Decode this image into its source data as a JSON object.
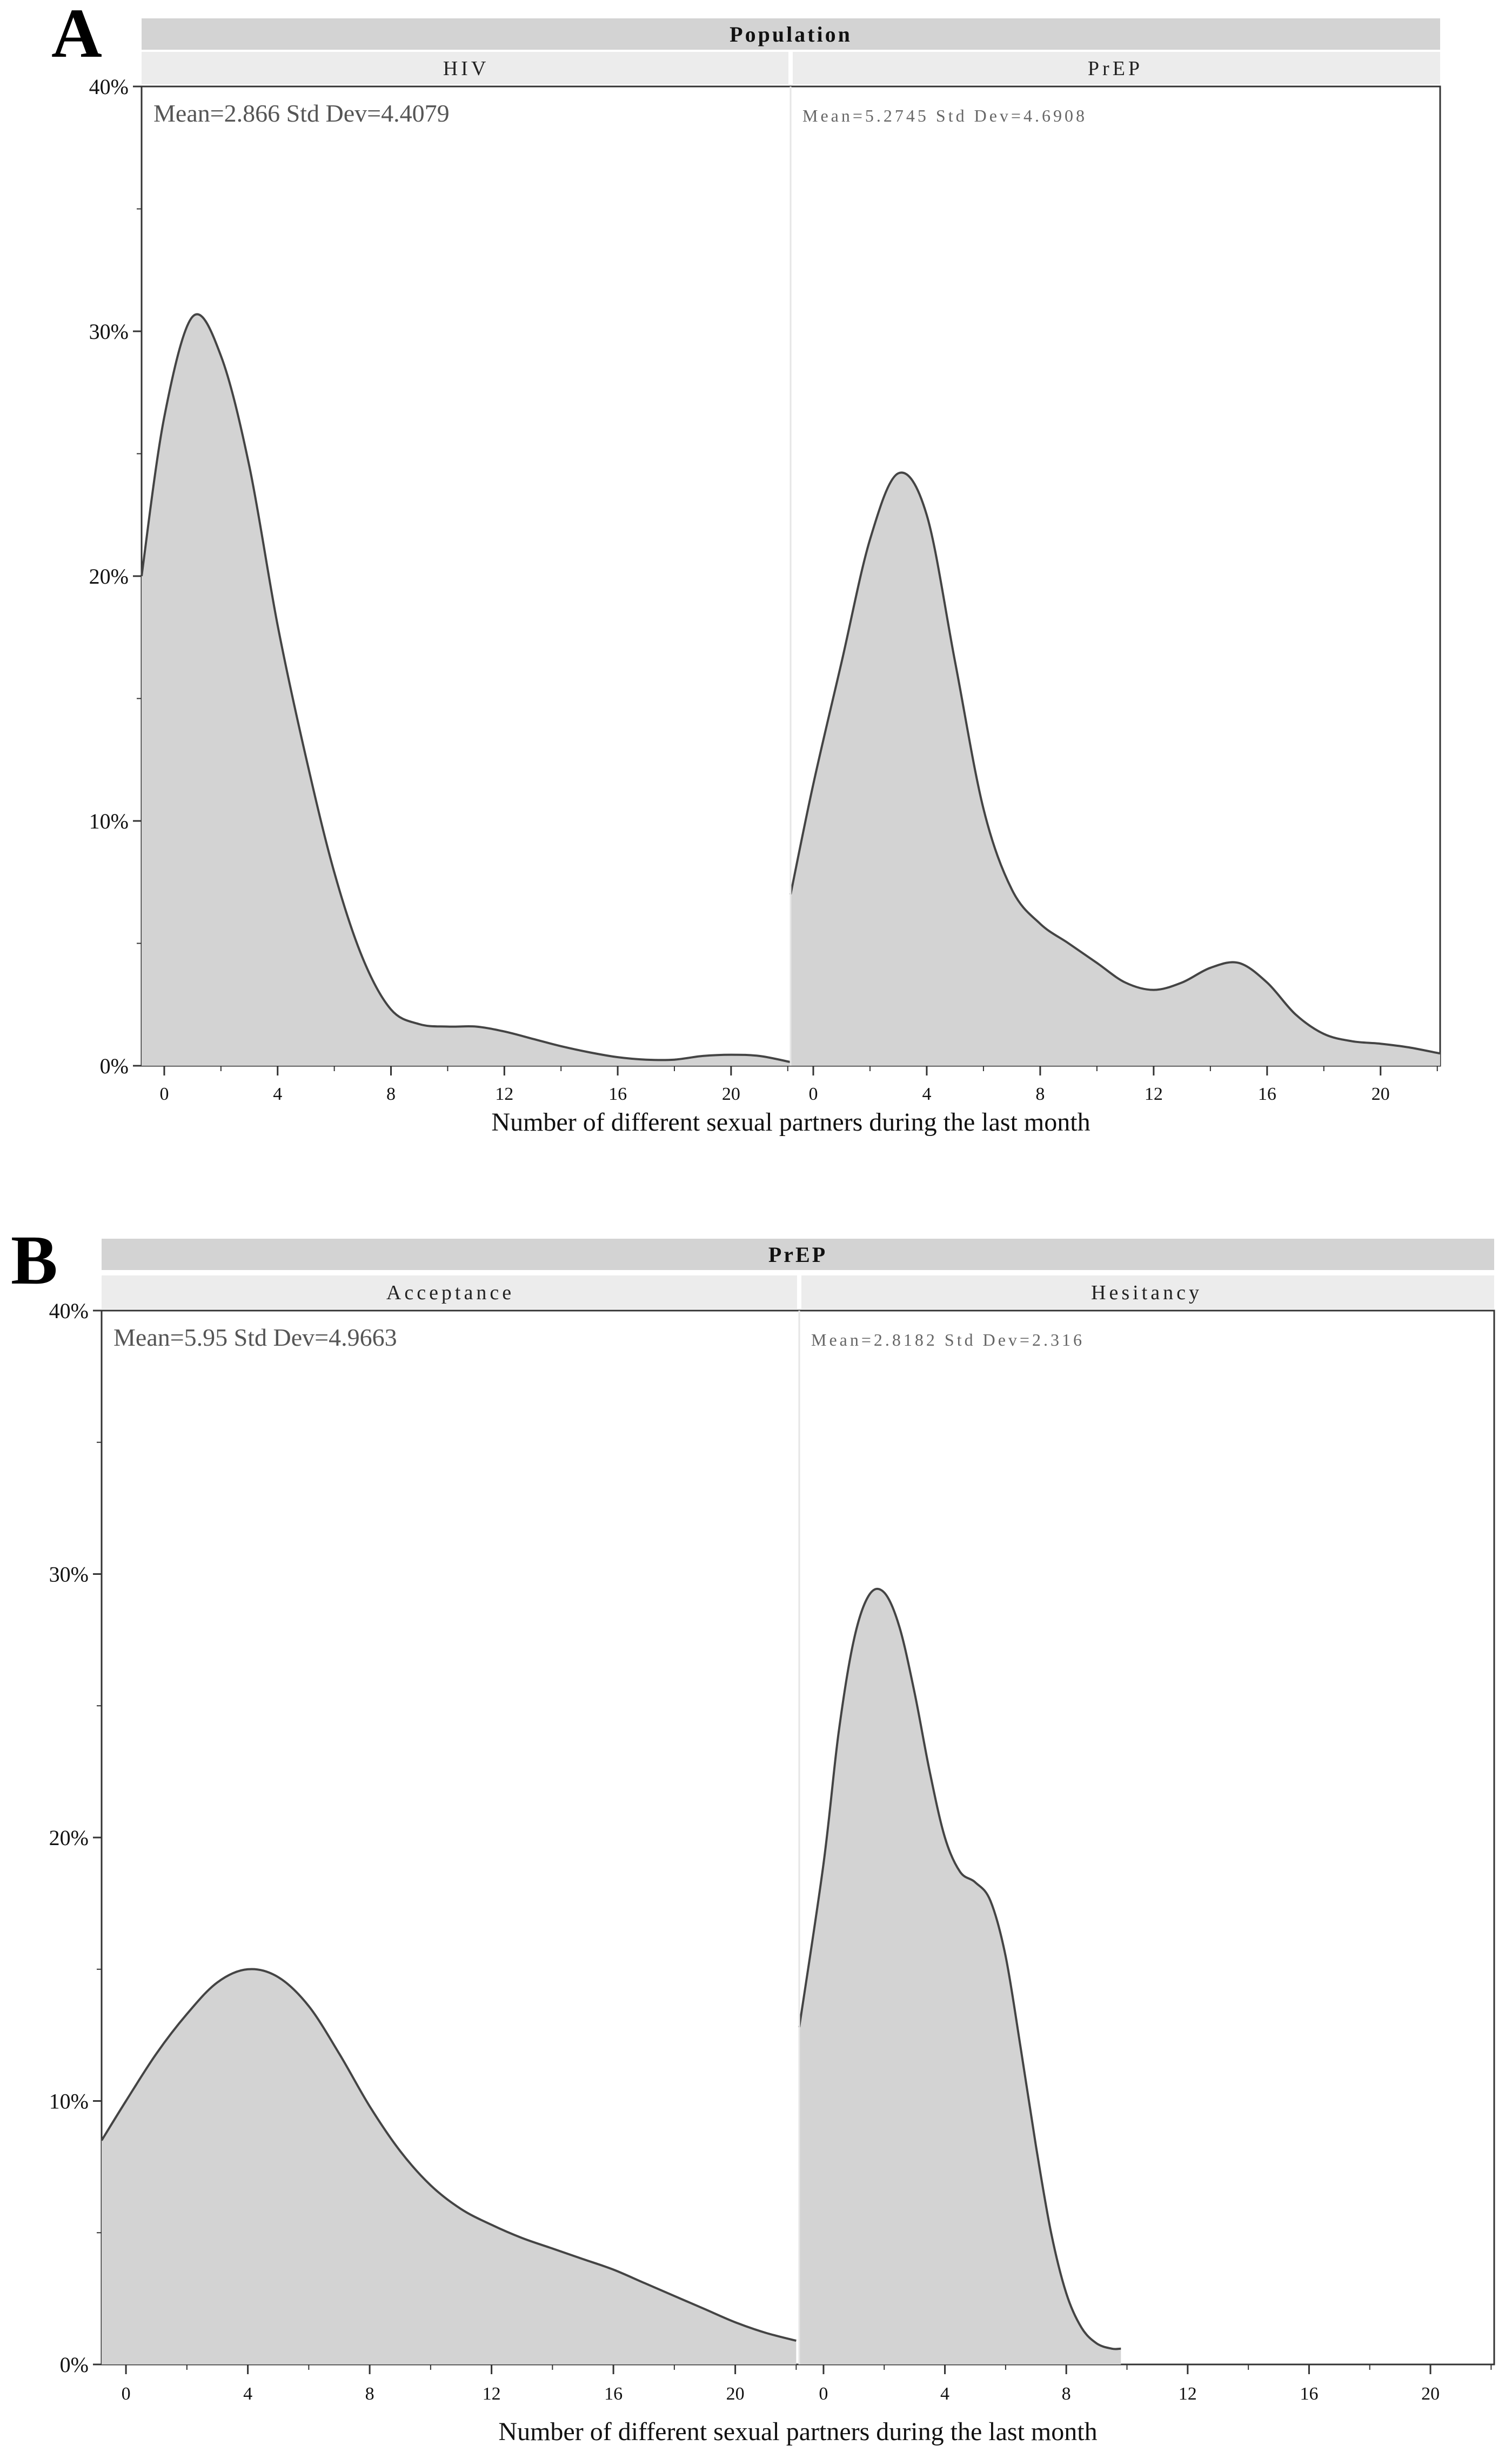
{
  "chart_data": [
    {
      "type": "area",
      "panel_letter": "A",
      "group_label": "Population",
      "xlabel": "Number of different sexual partners during the last month",
      "ylabel": "",
      "ylim": [
        0,
        40
      ],
      "y_ticks": [
        "0%",
        "10%",
        "20%",
        "30%",
        "40%"
      ],
      "x_ticks": [
        "0",
        "4",
        "8",
        "12",
        "16",
        "20"
      ],
      "grid": false,
      "facets": [
        {
          "name": "HIV",
          "stats": "Mean=2.866  Std Dev=4.4079",
          "xlim": [
            -0.8,
            22.1
          ],
          "x": [
            -0.8,
            0,
            1,
            2,
            3,
            4,
            5,
            6,
            7,
            8,
            9,
            10,
            11,
            12,
            13,
            14,
            15,
            16,
            17,
            18,
            19,
            20,
            21,
            22.1
          ],
          "y": [
            20,
            26.5,
            30.6,
            29,
            24.5,
            18,
            12.6,
            7.9,
            4.4,
            2.3,
            1.7,
            1.6,
            1.6,
            1.4,
            1.1,
            0.8,
            0.55,
            0.35,
            0.25,
            0.25,
            0.4,
            0.45,
            0.4,
            0.15
          ]
        },
        {
          "name": "PrEP",
          "stats": "Mean=5.2745  Std Dev=4.6908",
          "xlim": [
            -0.8,
            22.1
          ],
          "x": [
            -0.8,
            0,
            1,
            2,
            3,
            4,
            5,
            6,
            7,
            8,
            9,
            10,
            11,
            12,
            13,
            14,
            15,
            16,
            17,
            18,
            19,
            20,
            21,
            22.1
          ],
          "y": [
            7,
            11.5,
            16.5,
            21.5,
            24.2,
            22.5,
            16.5,
            10.5,
            7.2,
            5.8,
            5,
            4.2,
            3.4,
            3.1,
            3.4,
            4,
            4.2,
            3.4,
            2.1,
            1.3,
            1,
            0.9,
            0.75,
            0.5
          ]
        }
      ]
    },
    {
      "type": "area",
      "panel_letter": "B",
      "group_label": "PrEP",
      "xlabel": "Number of different sexual partners during the last month",
      "ylabel": "",
      "ylim": [
        0,
        40
      ],
      "y_ticks": [
        "0%",
        "10%",
        "20%",
        "30%",
        "40%"
      ],
      "x_ticks": [
        "0",
        "4",
        "8",
        "12",
        "16",
        "20"
      ],
      "grid": false,
      "facets": [
        {
          "name": "Acceptance",
          "stats": "Mean=5.95  Std Dev=4.9663",
          "xlim": [
            -0.8,
            22.1
          ],
          "x": [
            -0.8,
            0,
            1,
            2,
            3,
            4,
            5,
            6,
            7,
            8,
            9,
            10,
            11,
            12,
            13,
            14,
            15,
            16,
            17,
            18,
            19,
            20,
            21,
            22
          ],
          "y": [
            8.5,
            10,
            11.8,
            13.3,
            14.5,
            15,
            14.7,
            13.6,
            11.8,
            9.8,
            8.1,
            6.8,
            5.9,
            5.3,
            4.8,
            4.4,
            4,
            3.6,
            3.1,
            2.6,
            2.1,
            1.6,
            1.2,
            0.9
          ]
        },
        {
          "name": "Hesitancy",
          "stats": "Mean=2.8182  Std Dev=2.316",
          "xlim": [
            -0.8,
            22.1
          ],
          "x": [
            -0.8,
            0,
            0.5,
            1,
            1.5,
            2,
            2.5,
            3,
            3.5,
            4,
            4.5,
            5,
            5.5,
            6,
            6.5,
            7,
            7.5,
            8,
            8.5,
            9,
            9.5,
            9.8
          ],
          "y": [
            12.8,
            19,
            24,
            27.5,
            29.2,
            29.3,
            28,
            25.5,
            22.5,
            20,
            18.7,
            18.3,
            17.6,
            15.5,
            12,
            8.3,
            5,
            2.7,
            1.4,
            0.8,
            0.6,
            0.6
          ]
        }
      ]
    }
  ]
}
